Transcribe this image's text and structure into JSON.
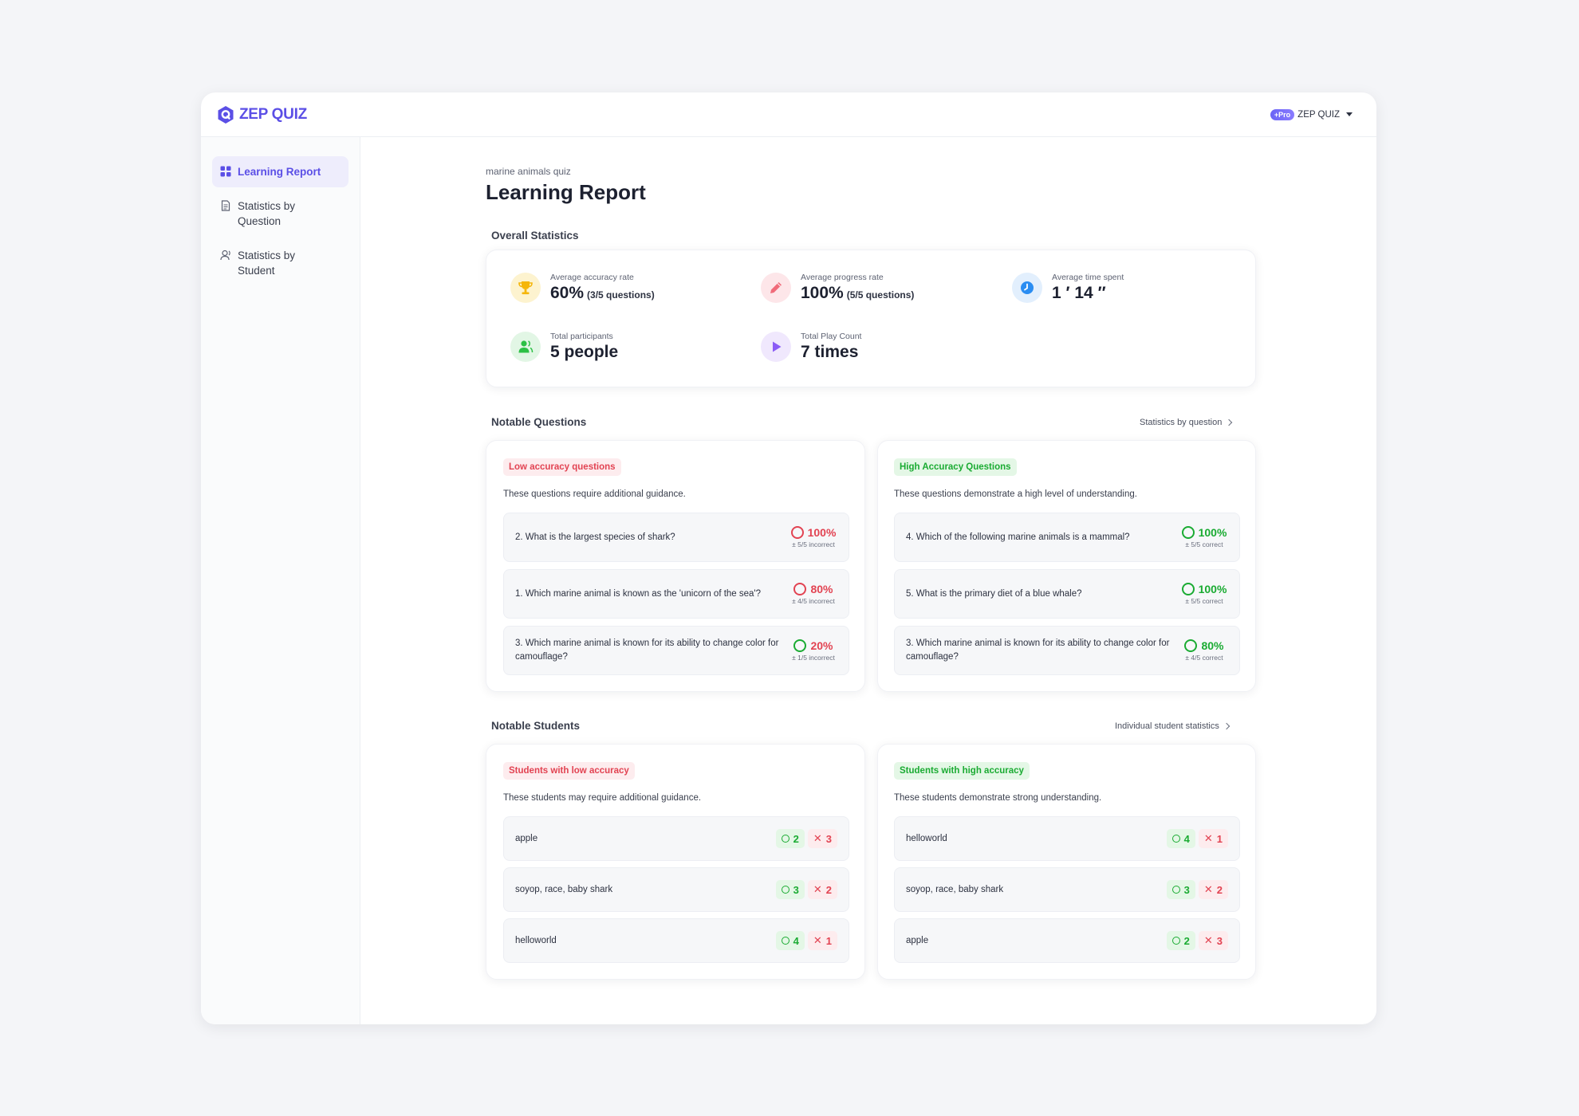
{
  "app": {
    "logo_text": "ZEP QUIZ",
    "account": {
      "badge": "Pro",
      "name": "ZEP QUIZ"
    }
  },
  "sidebar": {
    "items": [
      {
        "label": "Learning Report"
      },
      {
        "label": "Statistics by Question"
      },
      {
        "label": "Statistics by Student"
      }
    ]
  },
  "header": {
    "subtitle": "marine animals quiz",
    "title": "Learning Report"
  },
  "overall": {
    "title": "Overall Statistics",
    "stats": [
      {
        "label": "Average accuracy rate",
        "value": "60%",
        "note": "(3/5 questions)",
        "icon": "trophy-icon",
        "color": "#f5b60a"
      },
      {
        "label": "Average progress rate",
        "value": "100%",
        "note": "(5/5 questions)",
        "icon": "pencil-icon",
        "color": "#f06b7a"
      },
      {
        "label": "Average time spent",
        "value": "1 ′ 14 ″",
        "note": "",
        "icon": "clock-icon",
        "color": "#2a8df2"
      },
      {
        "label": "Total participants",
        "value": "5 people",
        "note": "",
        "icon": "users-icon",
        "color": "#2cc045"
      },
      {
        "label": "Total Play Count",
        "value": "7 times",
        "note": "",
        "icon": "play-icon",
        "color": "#8b5cf6"
      }
    ]
  },
  "notable_questions": {
    "title": "Notable Questions",
    "link": "Statistics by question",
    "low": {
      "tag": "Low accuracy questions",
      "desc": "These questions require additional guidance.",
      "items": [
        {
          "text": "2. What is the largest species of shark?",
          "pct": "100%",
          "sub": "± 5/5 incorrect"
        },
        {
          "text": "1. Which marine animal is known as the 'unicorn of the sea'?",
          "pct": "80%",
          "sub": "± 4/5 incorrect"
        },
        {
          "text": "3. Which marine animal is known for its ability to change color for camouflage?",
          "pct": "20%",
          "sub": "± 1/5 incorrect"
        }
      ]
    },
    "high": {
      "tag": "High Accuracy Questions",
      "desc": "These questions demonstrate a high level of understanding.",
      "items": [
        {
          "text": "4. Which of the following marine animals is a mammal?",
          "pct": "100%",
          "sub": "± 5/5 correct"
        },
        {
          "text": "5. What is the primary diet of a blue whale?",
          "pct": "100%",
          "sub": "± 5/5 correct"
        },
        {
          "text": "3. Which marine animal is known for its ability to change color for camouflage?",
          "pct": "80%",
          "sub": "± 4/5 correct"
        }
      ]
    }
  },
  "notable_students": {
    "title": "Notable Students",
    "link": "Individual student statistics",
    "low": {
      "tag": "Students with low accuracy",
      "desc": "These students may require additional guidance.",
      "items": [
        {
          "name": "apple",
          "correct": "2",
          "wrong": "3"
        },
        {
          "name": "soyop, race, baby shark",
          "correct": "3",
          "wrong": "2"
        },
        {
          "name": "helloworld",
          "correct": "4",
          "wrong": "1"
        }
      ]
    },
    "high": {
      "tag": "Students with high accuracy",
      "desc": "These students demonstrate strong understanding.",
      "items": [
        {
          "name": "helloworld",
          "correct": "4",
          "wrong": "1"
        },
        {
          "name": "soyop, race, baby shark",
          "correct": "3",
          "wrong": "2"
        },
        {
          "name": "apple",
          "correct": "2",
          "wrong": "3"
        }
      ]
    }
  }
}
